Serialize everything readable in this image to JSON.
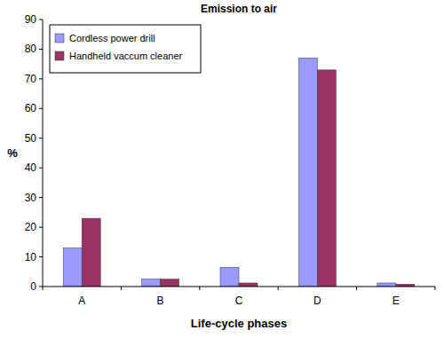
{
  "chart_data": {
    "type": "bar",
    "title": "Emission to air",
    "x_label": "Life-cycle phases",
    "y_label": "%",
    "categories": [
      "A",
      "B",
      "C",
      "D",
      "E"
    ],
    "series": [
      {
        "name": "Cordless power drill",
        "color": "#9999ff",
        "values": [
          13,
          2.5,
          6.5,
          77,
          1.2
        ]
      },
      {
        "name": "Handheld vaccum cleaner",
        "color": "#993366",
        "values": [
          23,
          2.5,
          1.2,
          73,
          0.8
        ]
      }
    ],
    "ylim": [
      0,
      90
    ],
    "yticks": [
      0,
      10,
      20,
      30,
      40,
      50,
      60,
      70,
      80,
      90
    ],
    "grid": false,
    "legend": "upper left"
  }
}
